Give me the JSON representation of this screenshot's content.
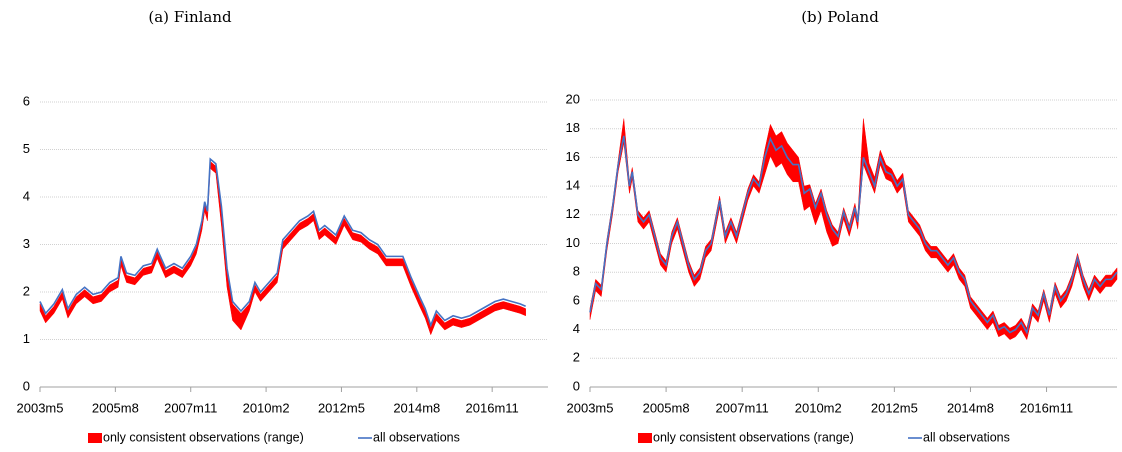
{
  "chart_data": [
    {
      "type": "line",
      "title": "(a) Finland",
      "x": [
        0,
        2,
        5,
        8,
        10,
        13,
        16,
        19,
        22,
        25,
        28,
        29,
        31,
        34,
        37,
        40,
        42,
        45,
        48,
        51,
        54,
        56,
        58,
        59,
        60,
        61,
        63,
        65,
        67,
        69,
        72,
        75,
        77,
        79,
        82,
        85,
        87,
        90,
        93,
        96,
        98,
        100,
        102,
        104,
        106,
        109,
        112,
        115,
        118,
        121,
        124,
        127,
        130,
        133,
        136,
        138,
        140,
        142,
        145,
        148,
        151,
        154,
        157,
        160,
        163,
        166,
        169,
        172,
        174
      ],
      "series": [
        {
          "name": "only consistent observations (range)",
          "color": "#ff0000",
          "values": [
            1.75,
            1.5,
            1.7,
            2.0,
            1.6,
            1.9,
            2.05,
            1.9,
            1.95,
            2.15,
            2.25,
            2.7,
            2.35,
            2.3,
            2.5,
            2.55,
            2.85,
            2.45,
            2.55,
            2.45,
            2.7,
            2.95,
            3.45,
            3.85,
            3.65,
            4.75,
            4.65,
            3.75,
            2.45,
            1.75,
            1.55,
            1.75,
            2.15,
            1.95,
            2.15,
            2.35,
            3.05,
            3.25,
            3.45,
            3.55,
            3.65,
            3.25,
            3.35,
            3.25,
            3.15,
            3.55,
            3.25,
            3.2,
            3.05,
            2.95,
            2.7,
            2.7,
            2.7,
            2.25,
            1.85,
            1.6,
            1.25,
            1.55,
            1.35,
            1.45,
            1.4,
            1.45,
            1.55,
            1.65,
            1.75,
            1.8,
            1.75,
            1.7,
            1.65
          ],
          "lower": [
            1.6,
            1.35,
            1.55,
            1.85,
            1.45,
            1.75,
            1.9,
            1.75,
            1.8,
            2.0,
            2.1,
            2.55,
            2.2,
            2.15,
            2.35,
            2.4,
            2.7,
            2.3,
            2.4,
            2.3,
            2.55,
            2.8,
            3.3,
            3.7,
            3.5,
            4.6,
            4.5,
            3.4,
            2.1,
            1.4,
            1.2,
            1.6,
            2.0,
            1.8,
            2.0,
            2.2,
            2.9,
            3.1,
            3.3,
            3.4,
            3.5,
            3.1,
            3.2,
            3.1,
            3.0,
            3.4,
            3.1,
            3.05,
            2.9,
            2.8,
            2.55,
            2.55,
            2.55,
            2.1,
            1.7,
            1.45,
            1.1,
            1.4,
            1.2,
            1.3,
            1.25,
            1.3,
            1.4,
            1.5,
            1.6,
            1.65,
            1.6,
            1.55,
            1.5
          ]
        },
        {
          "name": "all observations",
          "color": "#4472c4",
          "values": [
            1.8,
            1.55,
            1.75,
            2.05,
            1.65,
            1.95,
            2.1,
            1.95,
            2.0,
            2.2,
            2.3,
            2.75,
            2.4,
            2.35,
            2.55,
            2.6,
            2.9,
            2.5,
            2.6,
            2.5,
            2.75,
            3.0,
            3.5,
            3.9,
            3.7,
            4.8,
            4.7,
            3.8,
            2.5,
            1.8,
            1.6,
            1.8,
            2.2,
            2.0,
            2.2,
            2.4,
            3.1,
            3.3,
            3.5,
            3.6,
            3.7,
            3.3,
            3.4,
            3.3,
            3.2,
            3.6,
            3.3,
            3.25,
            3.1,
            3.0,
            2.75,
            2.75,
            2.75,
            2.3,
            1.9,
            1.65,
            1.3,
            1.6,
            1.4,
            1.5,
            1.45,
            1.5,
            1.6,
            1.7,
            1.8,
            1.85,
            1.8,
            1.75,
            1.7
          ]
        }
      ],
      "xlim": [
        0,
        182
      ],
      "ylim": [
        0,
        6
      ],
      "xticks": [
        {
          "value": 0,
          "label": "2003m5"
        },
        {
          "value": 27,
          "label": "2005m8"
        },
        {
          "value": 54,
          "label": "2007m11"
        },
        {
          "value": 81,
          "label": "2010m2"
        },
        {
          "value": 108,
          "label": "2012m5"
        },
        {
          "value": 135,
          "label": "2014m8"
        },
        {
          "value": 162,
          "label": "2016m11"
        }
      ],
      "yticks": [
        0,
        1,
        2,
        3,
        4,
        5,
        6
      ],
      "grid": true
    },
    {
      "type": "line",
      "title": "(b) Poland",
      "x": [
        0,
        2,
        4,
        6,
        8,
        10,
        12,
        14,
        15,
        17,
        19,
        21,
        23,
        25,
        27,
        29,
        31,
        33,
        35,
        37,
        39,
        41,
        43,
        45,
        46,
        48,
        50,
        52,
        54,
        56,
        58,
        60,
        62,
        64,
        66,
        68,
        70,
        72,
        74,
        76,
        78,
        80,
        82,
        84,
        86,
        88,
        90,
        92,
        94,
        95,
        97,
        99,
        101,
        103,
        105,
        107,
        109,
        111,
        113,
        115,
        117,
        119,
        121,
        123,
        125,
        127,
        129,
        131,
        133,
        135,
        137,
        139,
        141,
        143,
        145,
        147,
        149,
        151,
        153,
        155,
        157,
        159,
        161,
        163,
        165,
        167,
        169,
        171,
        173,
        175,
        177,
        179,
        181,
        183,
        185,
        187
      ],
      "series": [
        {
          "name": "only consistent observations (range)",
          "color": "#ff0000",
          "values": [
            5.5,
            7.5,
            7.1,
            10.3,
            12.8,
            15.8,
            18.7,
            14.3,
            15.3,
            12.3,
            11.8,
            12.3,
            10.8,
            9.3,
            8.8,
            10.8,
            11.8,
            10.3,
            8.8,
            7.8,
            8.3,
            9.8,
            10.3,
            12.3,
            13.3,
            10.8,
            11.8,
            10.8,
            12.3,
            13.8,
            14.8,
            14.3,
            16.5,
            18.3,
            17.5,
            17.8,
            17,
            16.5,
            16,
            14,
            14.1,
            12.8,
            13.8,
            12.3,
            11.3,
            10.8,
            12.5,
            11.3,
            12.8,
            11.8,
            18.7,
            15.6,
            14.6,
            16.5,
            15.5,
            15.2,
            14.4,
            14.9,
            12.3,
            11.8,
            11.3,
            10.3,
            9.8,
            9.8,
            9.3,
            8.8,
            9.3,
            8.3,
            7.8,
            6.3,
            5.8,
            5.3,
            4.8,
            5.3,
            4.3,
            4.5,
            4.1,
            4.3,
            4.8,
            4.1,
            5.8,
            5.3,
            6.8,
            5.3,
            7.3,
            6.3,
            6.8,
            7.8,
            9.3,
            7.8,
            6.8,
            7.8,
            7.3,
            7.8,
            7.8,
            8.3
          ],
          "lower": [
            4.7,
            6.7,
            6.3,
            9.5,
            12,
            15,
            17,
            13.5,
            14.5,
            11.5,
            11,
            11.5,
            10,
            8.5,
            8,
            10,
            11,
            9.5,
            8,
            7,
            7.5,
            9,
            9.5,
            11.5,
            12.5,
            10,
            11,
            10,
            11.5,
            13,
            14,
            13.5,
            14.8,
            16.1,
            15.3,
            15.6,
            14.8,
            14.3,
            14.3,
            12.3,
            12.6,
            11.3,
            12.3,
            10.8,
            9.8,
            10,
            11.7,
            10.5,
            12,
            11,
            15.5,
            14.5,
            13.5,
            15.5,
            14.5,
            14.3,
            13.5,
            14,
            11.5,
            11,
            10.5,
            9.5,
            9,
            9,
            8.5,
            8,
            8.5,
            7.5,
            7,
            5.5,
            5,
            4.5,
            4,
            4.5,
            3.5,
            3.7,
            3.3,
            3.5,
            4,
            3.3,
            5,
            4.5,
            6,
            4.5,
            6.5,
            5.5,
            6,
            7,
            8.5,
            7,
            6,
            7,
            6.5,
            7,
            7,
            7.5
          ]
        },
        {
          "name": "all observations",
          "color": "#4472c4",
          "values": [
            5.2,
            7.2,
            6.8,
            10,
            12.5,
            15.5,
            17.5,
            14,
            15,
            12,
            11.5,
            12,
            10.5,
            9,
            8.5,
            10.5,
            11.5,
            10,
            8.5,
            7.5,
            8,
            9.5,
            10,
            12,
            13,
            10.5,
            11.5,
            10.5,
            12,
            13.5,
            14.5,
            14,
            16,
            17.3,
            16.5,
            16.8,
            16,
            15.5,
            15.5,
            13.5,
            13.8,
            12.5,
            13.5,
            12,
            11,
            10.5,
            12.2,
            11,
            12.5,
            11.5,
            16,
            15,
            14,
            16,
            15,
            14.8,
            14,
            14.5,
            12,
            11.5,
            11,
            10,
            9.5,
            9.5,
            9,
            8.5,
            9,
            8,
            7.5,
            6,
            5.5,
            5,
            4.5,
            5,
            4,
            4.2,
            3.8,
            4,
            4.5,
            3.8,
            5.5,
            5,
            6.5,
            5,
            7,
            6,
            6.5,
            7.5,
            9,
            7.5,
            6.5,
            7.5,
            7,
            7.5,
            7.5,
            8
          ]
        }
      ],
      "xlim": [
        0,
        187
      ],
      "ylim": [
        0,
        20
      ],
      "xticks": [
        {
          "value": 0,
          "label": "2003m5"
        },
        {
          "value": 27,
          "label": "2005m8"
        },
        {
          "value": 54,
          "label": "2007m11"
        },
        {
          "value": 81,
          "label": "2010m2"
        },
        {
          "value": 108,
          "label": "2012m5"
        },
        {
          "value": 135,
          "label": "2014m8"
        },
        {
          "value": 162,
          "label": "2016m11"
        }
      ],
      "yticks": [
        0,
        2,
        4,
        6,
        8,
        10,
        12,
        14,
        16,
        18,
        20
      ],
      "grid": true
    }
  ]
}
